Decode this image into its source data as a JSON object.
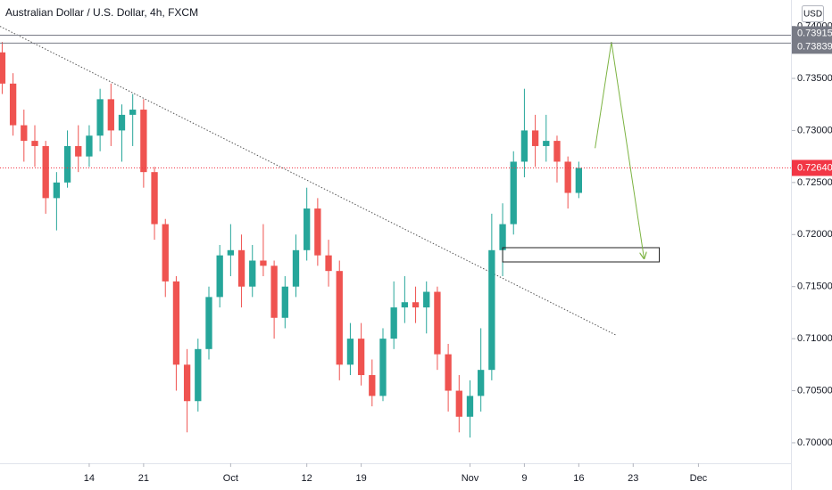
{
  "chart_data": {
    "type": "candlestick",
    "title": "Australian Dollar / U.S. Dollar, 4h, FXCM",
    "currency": "USD",
    "x": [
      2,
      3,
      4,
      5,
      6,
      7,
      8,
      9,
      10,
      11,
      12,
      13,
      14,
      15,
      16,
      17,
      18,
      19,
      20,
      21,
      22,
      23,
      24,
      25,
      26,
      27,
      28,
      29,
      30,
      31,
      32,
      33,
      34,
      35,
      36,
      37,
      38,
      39,
      40,
      41,
      42,
      43,
      44,
      45,
      46,
      47,
      48,
      49,
      50,
      51,
      52,
      53,
      54,
      55
    ],
    "open": [
      0.7375,
      0.7345,
      0.7305,
      0.729,
      0.7285,
      0.7235,
      0.725,
      0.7285,
      0.7275,
      0.7295,
      0.733,
      0.73,
      0.7315,
      0.732,
      0.726,
      0.721,
      0.7155,
      0.7075,
      0.704,
      0.709,
      0.714,
      0.718,
      0.7185,
      0.715,
      0.7175,
      0.717,
      0.712,
      0.715,
      0.7185,
      0.7225,
      0.718,
      0.7165,
      0.7075,
      0.71,
      0.7065,
      0.7045,
      0.71,
      0.713,
      0.7135,
      0.713,
      0.7145,
      0.7085,
      0.705,
      0.7025,
      0.7045,
      0.707,
      0.7185,
      0.721,
      0.727,
      0.73,
      0.7285,
      0.729,
      0.727,
      0.724
    ],
    "high": [
      0.7385,
      0.7355,
      0.732,
      0.7305,
      0.729,
      0.726,
      0.73,
      0.7305,
      0.7305,
      0.734,
      0.7345,
      0.7325,
      0.7335,
      0.733,
      0.7265,
      0.7215,
      0.716,
      0.709,
      0.71,
      0.715,
      0.719,
      0.721,
      0.72,
      0.719,
      0.721,
      0.7175,
      0.716,
      0.72,
      0.7245,
      0.7235,
      0.7195,
      0.7175,
      0.7115,
      0.7115,
      0.708,
      0.711,
      0.7155,
      0.716,
      0.715,
      0.7155,
      0.715,
      0.7095,
      0.7065,
      0.706,
      0.711,
      0.722,
      0.723,
      0.728,
      0.734,
      0.7315,
      0.7315,
      0.7295,
      0.7275,
      0.727
    ],
    "low": [
      0.7335,
      0.7295,
      0.727,
      0.7265,
      0.722,
      0.7204,
      0.7245,
      0.726,
      0.7265,
      0.728,
      0.7285,
      0.727,
      0.7285,
      0.7245,
      0.7195,
      0.714,
      0.705,
      0.701,
      0.703,
      0.708,
      0.713,
      0.716,
      0.713,
      0.714,
      0.716,
      0.71,
      0.711,
      0.714,
      0.7175,
      0.717,
      0.715,
      0.706,
      0.7065,
      0.7055,
      0.7035,
      0.704,
      0.709,
      0.7115,
      0.7115,
      0.7105,
      0.707,
      0.703,
      0.701,
      0.7005,
      0.703,
      0.706,
      0.716,
      0.72,
      0.7255,
      0.7265,
      0.727,
      0.725,
      0.7225,
      0.7235
    ],
    "close": [
      0.7345,
      0.7305,
      0.729,
      0.7285,
      0.7235,
      0.725,
      0.7285,
      0.7275,
      0.7295,
      0.733,
      0.73,
      0.7315,
      0.732,
      0.726,
      0.721,
      0.7155,
      0.7075,
      0.704,
      0.709,
      0.714,
      0.718,
      0.7185,
      0.715,
      0.7175,
      0.717,
      0.712,
      0.715,
      0.7185,
      0.7225,
      0.718,
      0.7165,
      0.7075,
      0.71,
      0.7065,
      0.7045,
      0.71,
      0.713,
      0.7135,
      0.713,
      0.7145,
      0.7085,
      0.705,
      0.7025,
      0.7045,
      0.707,
      0.7185,
      0.721,
      0.727,
      0.73,
      0.7285,
      0.729,
      0.727,
      0.724,
      0.7264
    ],
    "up_color": "#26a69a",
    "down_color": "#ef5350",
    "xlim": [
      1.8,
      74.5
    ],
    "ylim": [
      0.69803,
      0.74253
    ],
    "xticks": [
      {
        "value": 10,
        "label": "14"
      },
      {
        "value": 15,
        "label": "21"
      },
      {
        "value": 23,
        "label": "Oct"
      },
      {
        "value": 30,
        "label": "12"
      },
      {
        "value": 35,
        "label": "19"
      },
      {
        "value": 45,
        "label": "Nov"
      },
      {
        "value": 50,
        "label": "9"
      },
      {
        "value": 55,
        "label": "16"
      },
      {
        "value": 60,
        "label": "23"
      },
      {
        "value": 66,
        "label": "Dec"
      }
    ],
    "yticks": [
      {
        "value": 0.7,
        "label": "0.70000"
      },
      {
        "value": 0.705,
        "label": "0.70500"
      },
      {
        "value": 0.71,
        "label": "0.71000"
      },
      {
        "value": 0.715,
        "label": "0.71500"
      },
      {
        "value": 0.72,
        "label": "0.72000"
      },
      {
        "value": 0.725,
        "label": "0.72500"
      },
      {
        "value": 0.73,
        "label": "0.73000"
      },
      {
        "value": 0.735,
        "label": "0.73500"
      },
      {
        "value": 0.74,
        "label": "0.74000"
      }
    ],
    "grid": false,
    "levels": [
      0.73915,
      0.73839
    ],
    "level_color": "#787b86",
    "last_price": {
      "value": 0.7264,
      "label": "0.72640"
    },
    "last_price_color": "#f23645",
    "trendline": {
      "x": [
        1.8,
        58.5
      ],
      "y": [
        0.74,
        0.7103
      ],
      "color": "#555555"
    },
    "zone": {
      "x": [
        48,
        62.4
      ],
      "y": [
        0.71874,
        0.71737
      ],
      "color": "#222222"
    },
    "projection": {
      "x": [
        56.5,
        58.0,
        61.0
      ],
      "y": [
        0.7283,
        0.7385,
        0.7177
      ],
      "color": "#7cb342"
    }
  }
}
